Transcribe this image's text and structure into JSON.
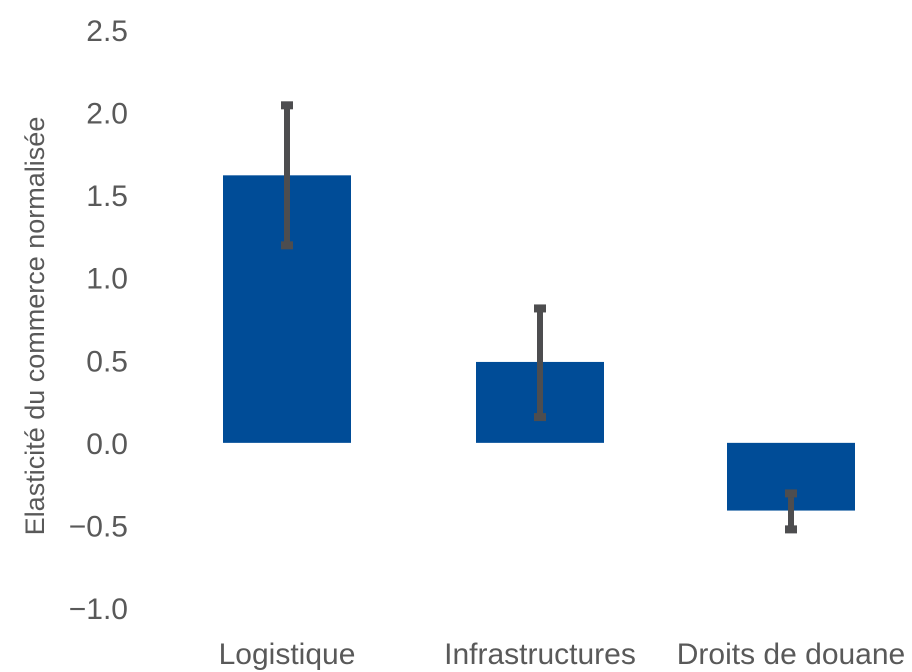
{
  "chart_data": {
    "type": "bar",
    "ylabel": "Elasticité  du commerce normalisée",
    "categories": [
      "Logistique",
      "Infrastructures",
      "Droits de douane"
    ],
    "values": [
      1.62,
      0.49,
      -0.41
    ],
    "error_bars": [
      {
        "low": 1.19,
        "high": 2.05
      },
      {
        "low": 0.15,
        "high": 0.82
      },
      {
        "low": -0.53,
        "high": -0.3
      }
    ],
    "y_ticks": [
      "2.5",
      "2.0",
      "1.5",
      "1.0",
      "0.5",
      "0.0",
      "−0.5",
      "−1.0"
    ],
    "ylim": [
      -1.0,
      2.5
    ],
    "grid": false,
    "colors": {
      "bar": "#004C97",
      "error_bar": "#4D4D4F",
      "text": "#595959"
    }
  }
}
